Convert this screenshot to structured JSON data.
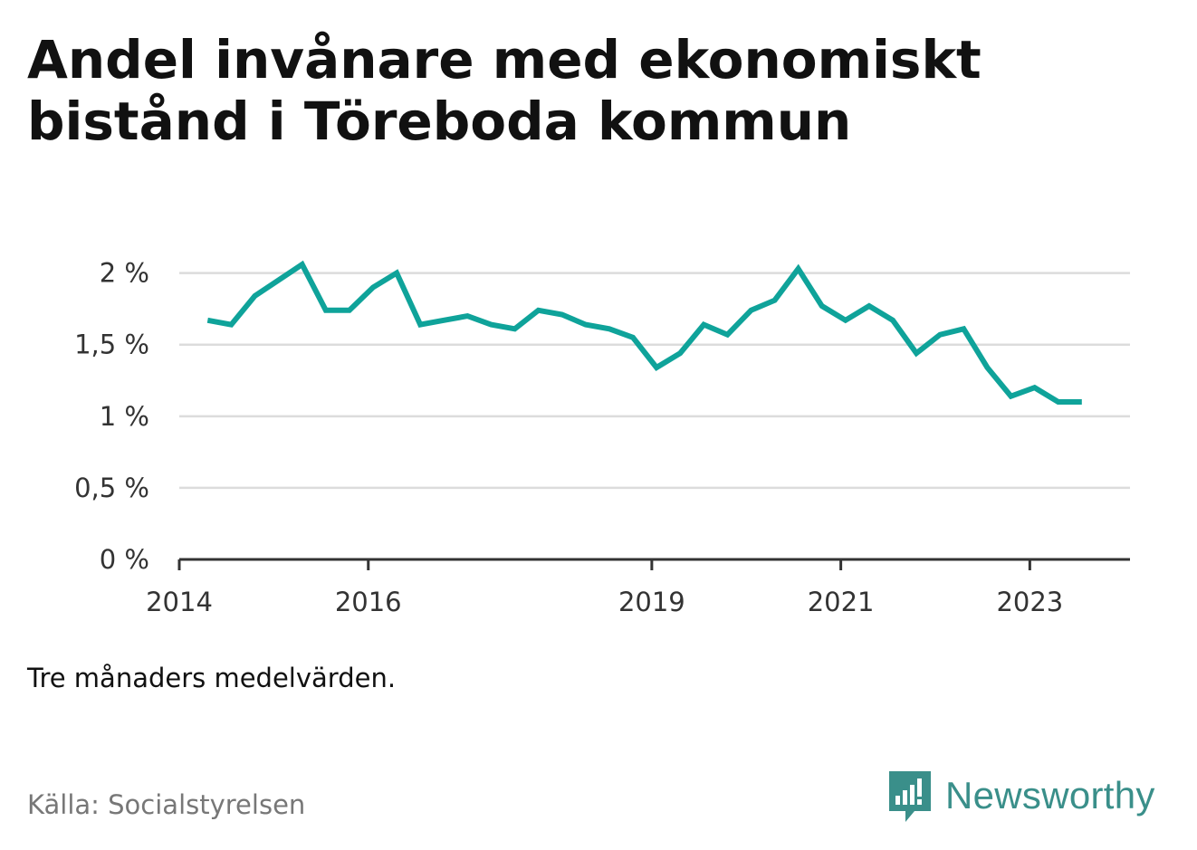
{
  "title": "Andel invånare med ekonomiskt bistånd i Töreboda kommun",
  "note": "Tre månaders medelvärden.",
  "source": "Källa: Socialstyrelsen",
  "brand": {
    "name": "Newsworthy",
    "color": "#3a8f8a",
    "icon": "newsworthy-logo-icon"
  },
  "chart_data": {
    "type": "line",
    "color": "#0fa39a",
    "grid": true,
    "ylim": [
      0,
      2.2
    ],
    "yticks": [
      0,
      0.5,
      1,
      1.5,
      2
    ],
    "ytick_labels": [
      "0 %",
      "0,5 %",
      "1 %",
      "1,5 %",
      "2 %"
    ],
    "xlim": [
      2014,
      2024.06
    ],
    "xticks": [
      2014,
      2016,
      2019,
      2021,
      2023
    ],
    "xtick_labels": [
      "2014",
      "2016",
      "2019",
      "2021",
      "2023"
    ],
    "x": [
      2014.3,
      2014.55,
      2014.8,
      2015.05,
      2015.3,
      2015.55,
      2015.8,
      2016.05,
      2016.3,
      2016.55,
      2016.8,
      2017.05,
      2017.3,
      2017.55,
      2017.8,
      2018.05,
      2018.3,
      2018.55,
      2018.8,
      2019.05,
      2019.3,
      2019.55,
      2019.8,
      2020.05,
      2020.3,
      2020.55,
      2020.8,
      2021.05,
      2021.3,
      2021.55,
      2021.8,
      2022.05,
      2022.3,
      2022.55,
      2022.8,
      2023.05,
      2023.3,
      2023.55
    ],
    "values": [
      1.67,
      1.64,
      1.84,
      1.95,
      2.06,
      1.74,
      1.74,
      1.9,
      2.0,
      1.64,
      1.67,
      1.7,
      1.64,
      1.61,
      1.74,
      1.71,
      1.64,
      1.61,
      1.55,
      1.34,
      1.44,
      1.64,
      1.57,
      1.74,
      1.81,
      2.03,
      1.77,
      1.67,
      1.77,
      1.67,
      1.44,
      1.57,
      1.61,
      1.34,
      1.14,
      1.2,
      1.1,
      1.1
    ]
  }
}
